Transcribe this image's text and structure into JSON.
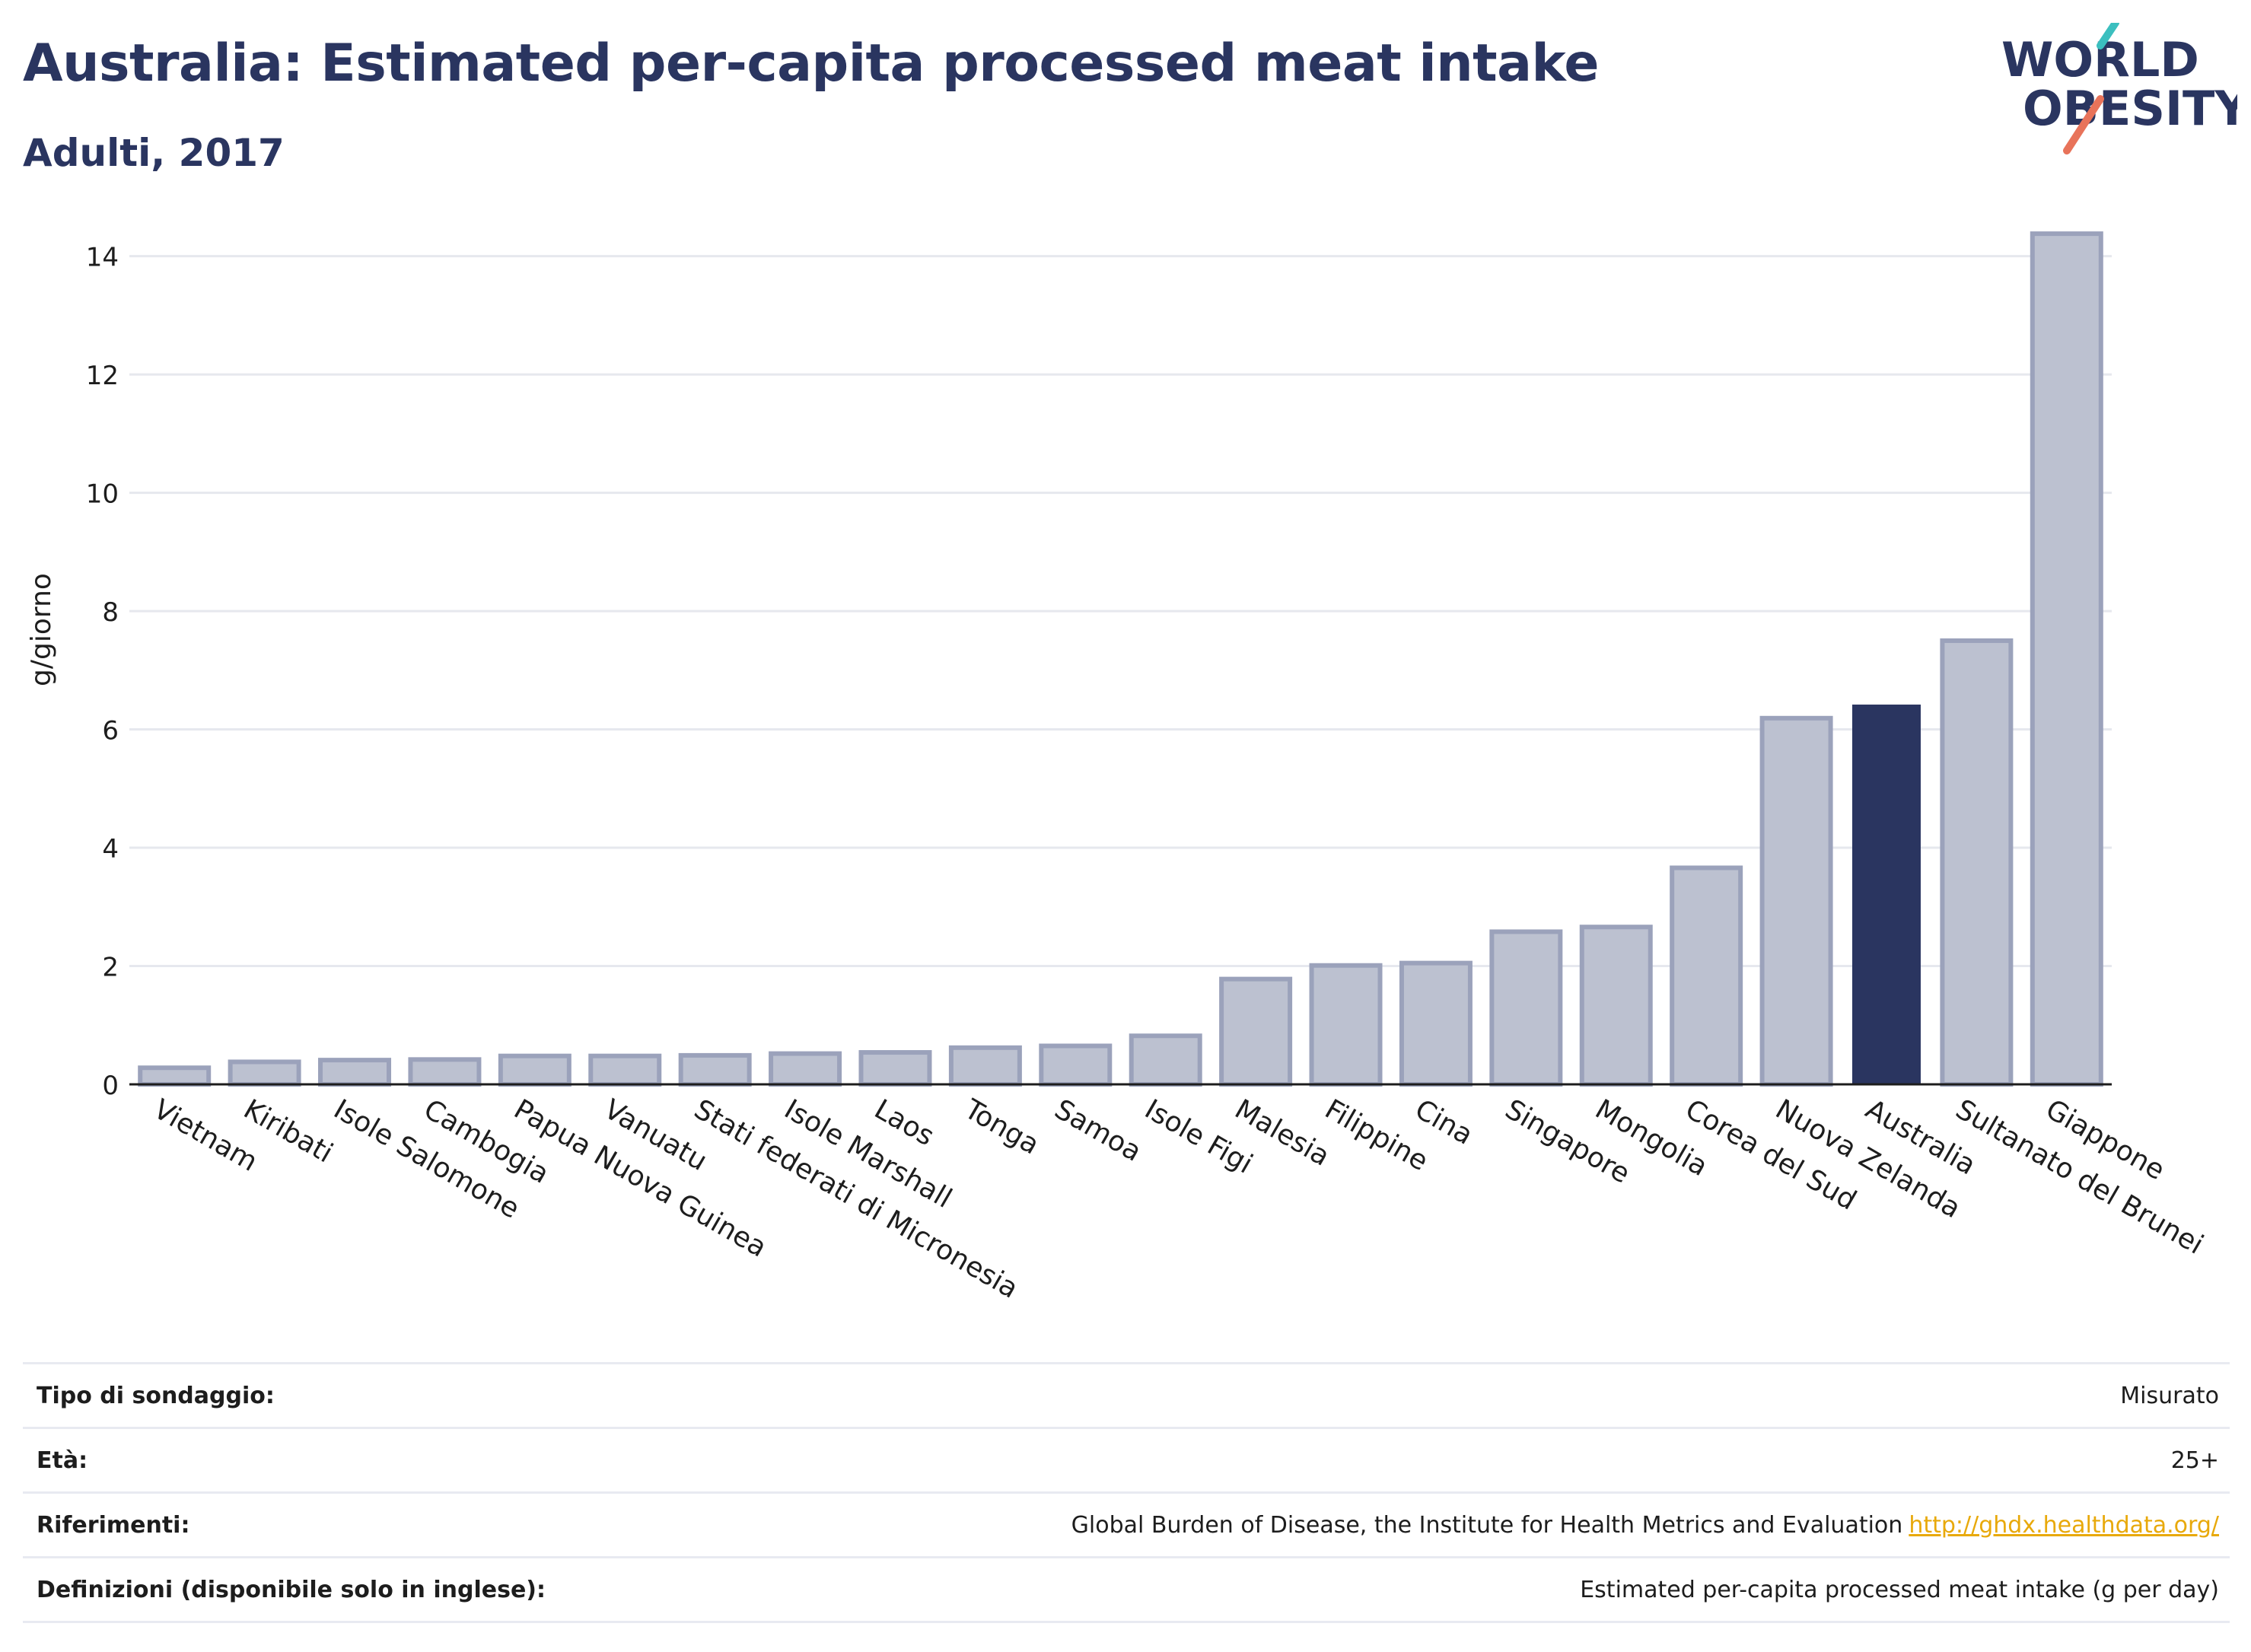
{
  "header": {
    "title": "Australia: Estimated per-capita processed meat intake",
    "subtitle": "Adulti, 2017",
    "logo_line1": "WORLD",
    "logo_line2": "OBESITY"
  },
  "colors": {
    "bar": "#bcc1d0",
    "bar_stroke": "#9ba2bb",
    "highlight": "#2a3560",
    "grid": "#e6e8ee",
    "text": "#1d1d1d",
    "title": "#2a3560",
    "logo_teal": "#3bbfbf",
    "logo_coral": "#e8735a",
    "link": "#e8a90b"
  },
  "chart_data": {
    "type": "bar",
    "ylabel": "g/giorno",
    "ylim": [
      0,
      14.6
    ],
    "yticks": [
      0,
      2,
      4,
      6,
      8,
      10,
      12,
      14
    ],
    "grid": true,
    "highlight": "Australia",
    "categories": [
      "Vietnam",
      "Kiribati",
      "Isole Salomone",
      "Cambogia",
      "Papua Nuova Guinea",
      "Vanuatu",
      "Stati federati di Micronesia",
      "Isole Marshall",
      "Laos",
      "Tonga",
      "Samoa",
      "Isole Figi",
      "Malesia",
      "Filippine",
      "Cina",
      "Singapore",
      "Mongolia",
      "Corea del Sud",
      "Nuova Zelanda",
      "Australia",
      "Sultanato del Brunei",
      "Giappone"
    ],
    "values": [
      0.28,
      0.38,
      0.41,
      0.42,
      0.48,
      0.48,
      0.49,
      0.52,
      0.54,
      0.62,
      0.65,
      0.82,
      1.78,
      2.01,
      2.05,
      2.58,
      2.66,
      3.66,
      6.19,
      6.42,
      7.5,
      14.38
    ]
  },
  "footer": {
    "rows": [
      {
        "label": "Tipo di sondaggio:",
        "value": "Misurato"
      },
      {
        "label": "Età:",
        "value": "25+"
      },
      {
        "label": "Riferimenti:",
        "value": "Global Burden of Disease, the Institute for Health Metrics and Evaluation",
        "link": "http://ghdx.healthdata.org/"
      },
      {
        "label": "Definizioni (disponibile solo in inglese):",
        "value": "Estimated per-capita processed meat intake (g per day)"
      }
    ]
  }
}
